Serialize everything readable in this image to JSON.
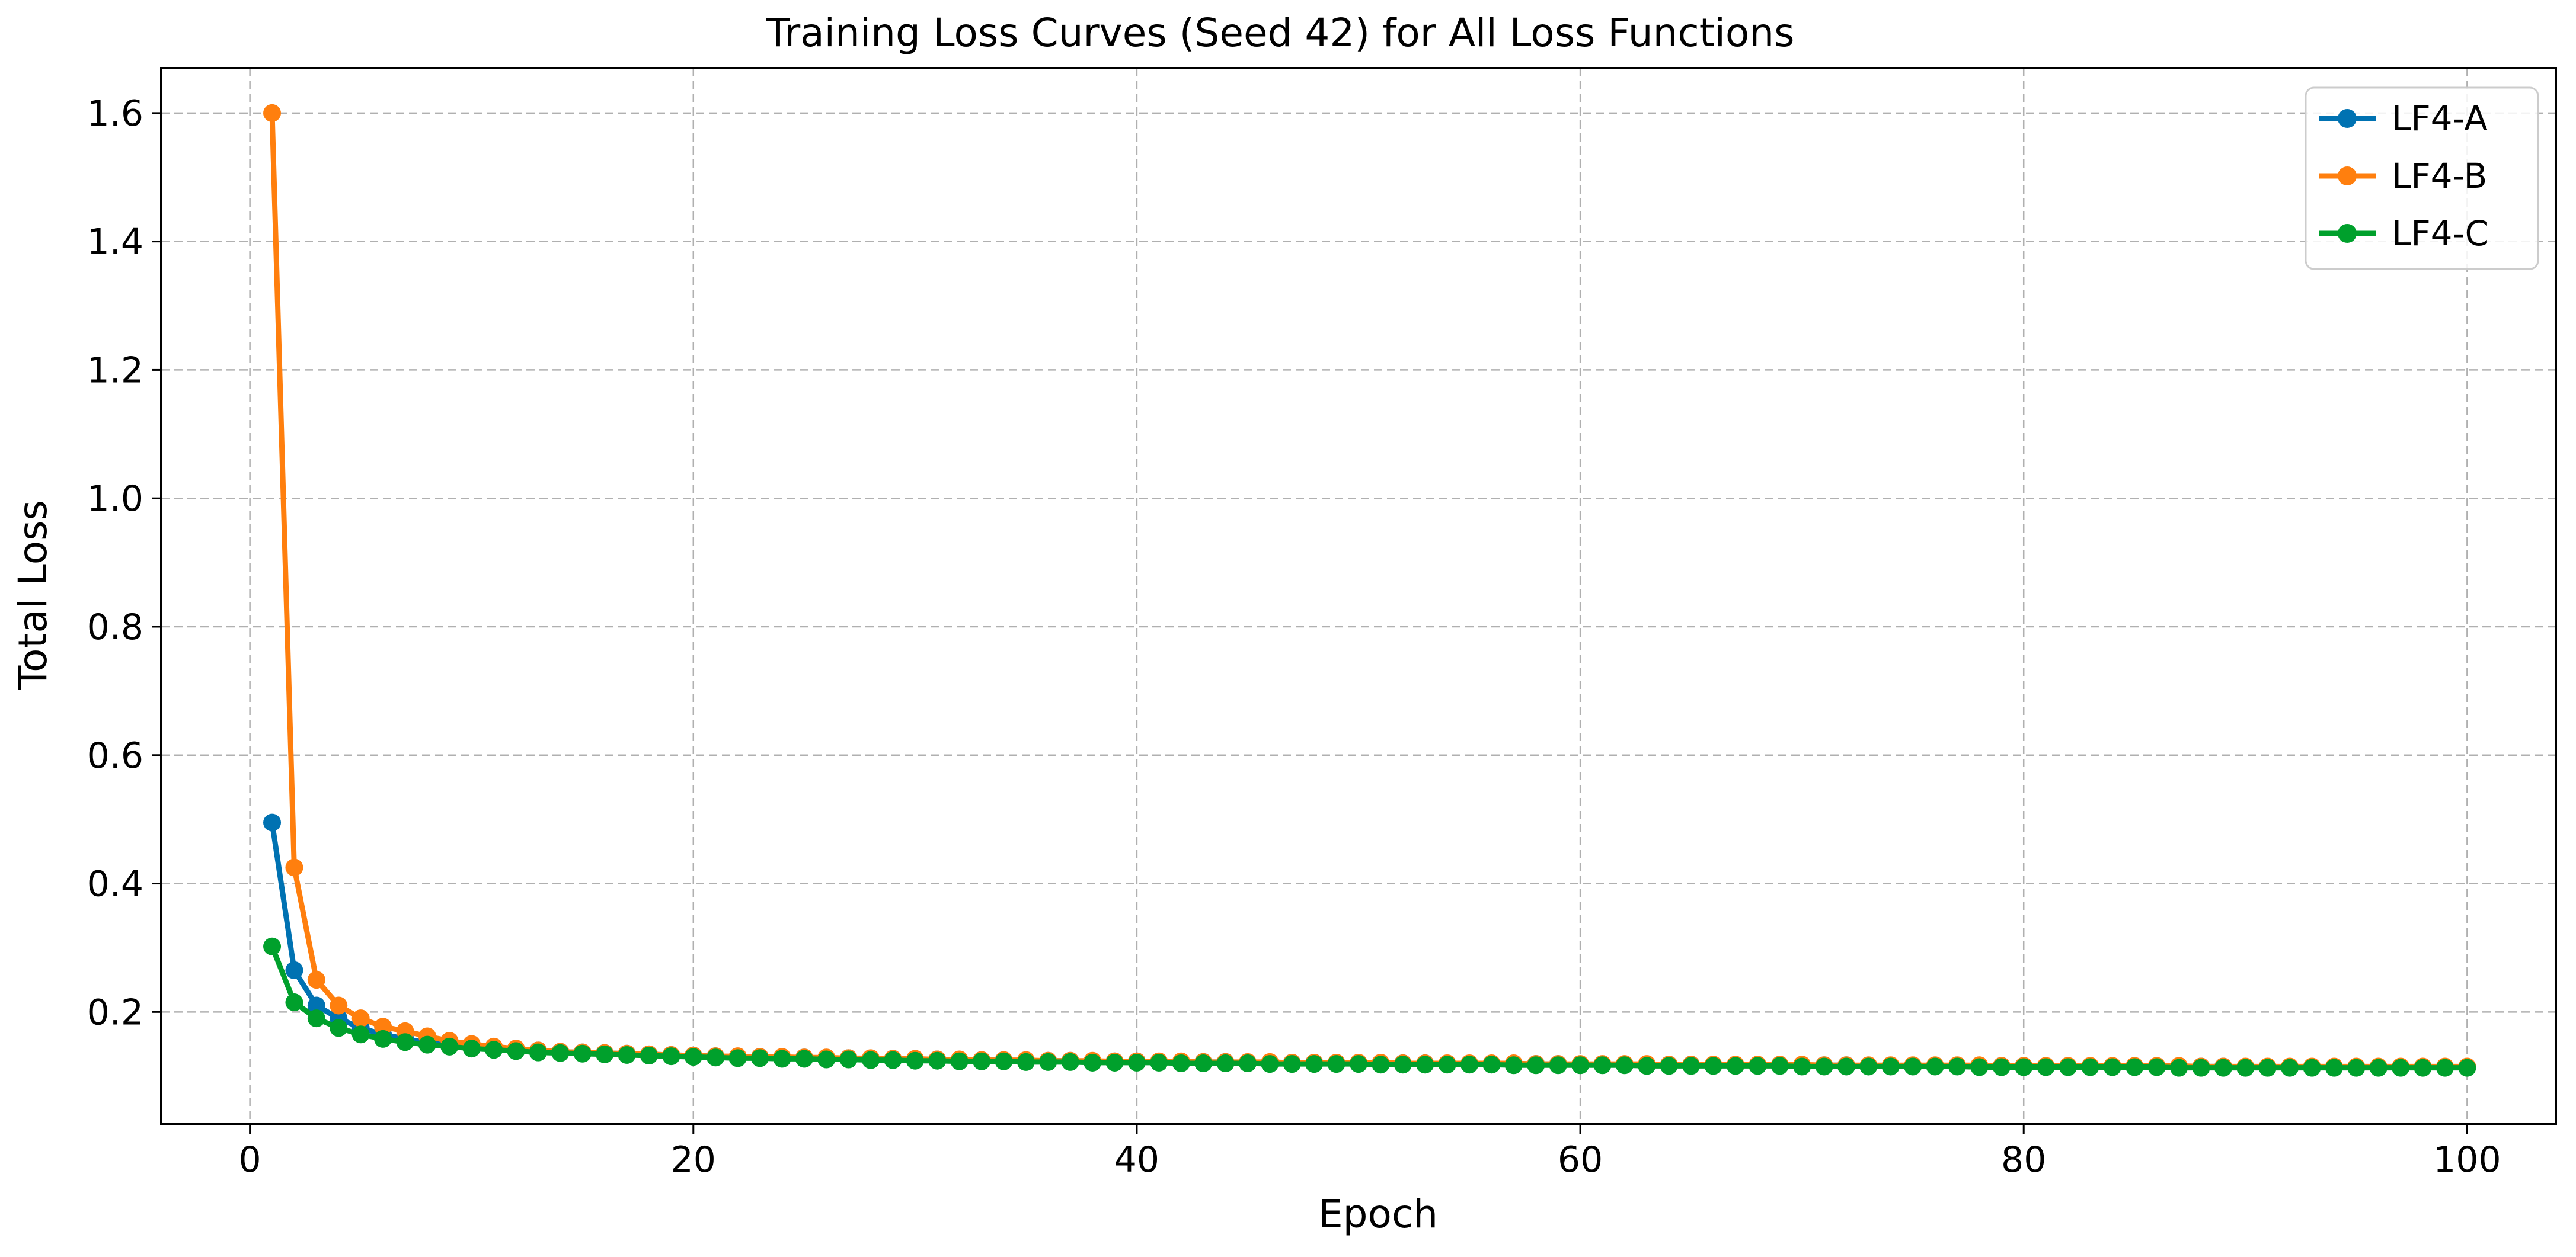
{
  "chart_data": {
    "type": "line",
    "title": "Training Loss Curves (Seed 42) for All Loss Functions",
    "xlabel": "Epoch",
    "ylabel": "Total Loss",
    "xlim": [
      -4,
      104
    ],
    "ylim": [
      0.025,
      1.67
    ],
    "xticks": [
      0,
      20,
      40,
      60,
      80,
      100
    ],
    "yticks": [
      0.2,
      0.4,
      0.6,
      0.8,
      1.0,
      1.2,
      1.4,
      1.6
    ],
    "xtick_labels": [
      "0",
      "20",
      "40",
      "60",
      "80",
      "100"
    ],
    "ytick_labels": [
      "0.2",
      "0.4",
      "0.6",
      "0.8",
      "1.0",
      "1.2",
      "1.4",
      "1.6"
    ],
    "grid": true,
    "legend_position": "top-right",
    "x_start": 1,
    "series": [
      {
        "name": "LF4-A",
        "color": "#0072B2",
        "values": [
          0.495,
          0.265,
          0.21,
          0.19,
          0.175,
          0.165,
          0.158,
          0.152,
          0.148,
          0.145,
          0.143,
          0.141,
          0.14,
          0.138,
          0.137,
          0.136,
          0.135,
          0.134,
          0.133,
          0.132,
          0.131,
          0.13,
          0.13,
          0.129,
          0.129,
          0.128,
          0.128,
          0.127,
          0.127,
          0.126,
          0.126,
          0.125,
          0.125,
          0.125,
          0.124,
          0.124,
          0.124,
          0.123,
          0.123,
          0.123,
          0.122,
          0.122,
          0.122,
          0.122,
          0.121,
          0.121,
          0.121,
          0.121,
          0.12,
          0.12,
          0.12,
          0.12,
          0.12,
          0.119,
          0.119,
          0.119,
          0.119,
          0.119,
          0.119,
          0.118,
          0.118,
          0.118,
          0.118,
          0.118,
          0.118,
          0.117,
          0.117,
          0.117,
          0.117,
          0.117,
          0.117,
          0.117,
          0.116,
          0.116,
          0.116,
          0.116,
          0.116,
          0.116,
          0.116,
          0.116,
          0.115,
          0.115,
          0.115,
          0.115,
          0.115,
          0.115,
          0.115,
          0.115,
          0.115,
          0.114,
          0.114,
          0.114,
          0.114,
          0.114,
          0.114,
          0.114,
          0.114,
          0.114,
          0.114,
          0.114
        ]
      },
      {
        "name": "LF4-B",
        "color": "#FF7F0E",
        "values": [
          1.6,
          0.425,
          0.25,
          0.21,
          0.19,
          0.177,
          0.17,
          0.162,
          0.155,
          0.15,
          0.146,
          0.143,
          0.14,
          0.138,
          0.137,
          0.136,
          0.135,
          0.134,
          0.133,
          0.132,
          0.131,
          0.131,
          0.13,
          0.13,
          0.129,
          0.129,
          0.128,
          0.128,
          0.127,
          0.127,
          0.126,
          0.126,
          0.125,
          0.125,
          0.125,
          0.124,
          0.124,
          0.124,
          0.123,
          0.123,
          0.123,
          0.123,
          0.122,
          0.122,
          0.122,
          0.122,
          0.121,
          0.121,
          0.121,
          0.121,
          0.121,
          0.12,
          0.12,
          0.12,
          0.12,
          0.12,
          0.12,
          0.119,
          0.119,
          0.119,
          0.119,
          0.119,
          0.119,
          0.118,
          0.118,
          0.118,
          0.118,
          0.118,
          0.118,
          0.118,
          0.117,
          0.117,
          0.117,
          0.117,
          0.117,
          0.117,
          0.117,
          0.117,
          0.116,
          0.116,
          0.116,
          0.116,
          0.116,
          0.116,
          0.116,
          0.116,
          0.116,
          0.115,
          0.115,
          0.115,
          0.115,
          0.115,
          0.115,
          0.115,
          0.115,
          0.115,
          0.115,
          0.115,
          0.115,
          0.115
        ]
      },
      {
        "name": "LF4-C",
        "color": "#00A02C",
        "values": [
          0.302,
          0.215,
          0.19,
          0.175,
          0.165,
          0.158,
          0.153,
          0.149,
          0.146,
          0.143,
          0.141,
          0.139,
          0.137,
          0.136,
          0.135,
          0.134,
          0.133,
          0.132,
          0.131,
          0.13,
          0.129,
          0.128,
          0.128,
          0.127,
          0.127,
          0.126,
          0.126,
          0.125,
          0.125,
          0.124,
          0.124,
          0.123,
          0.123,
          0.123,
          0.122,
          0.122,
          0.122,
          0.121,
          0.121,
          0.121,
          0.121,
          0.12,
          0.12,
          0.12,
          0.12,
          0.119,
          0.119,
          0.119,
          0.119,
          0.119,
          0.118,
          0.118,
          0.118,
          0.118,
          0.118,
          0.118,
          0.117,
          0.117,
          0.117,
          0.117,
          0.117,
          0.117,
          0.116,
          0.116,
          0.116,
          0.116,
          0.116,
          0.116,
          0.116,
          0.115,
          0.115,
          0.115,
          0.115,
          0.115,
          0.115,
          0.115,
          0.115,
          0.114,
          0.114,
          0.114,
          0.114,
          0.114,
          0.114,
          0.114,
          0.114,
          0.114,
          0.113,
          0.113,
          0.113,
          0.113,
          0.113,
          0.113,
          0.113,
          0.113,
          0.113,
          0.113,
          0.113,
          0.113,
          0.113,
          0.113
        ]
      }
    ]
  }
}
